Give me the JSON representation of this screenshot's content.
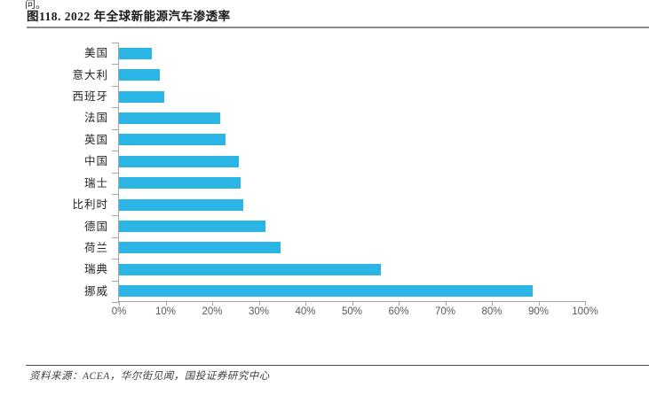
{
  "page": {
    "top_text": "问。"
  },
  "chart_data": {
    "type": "bar",
    "orientation": "horizontal",
    "title": "图118. 2022 年全球新能源汽车渗透率",
    "categories": [
      "美国",
      "意大利",
      "西班牙",
      "法国",
      "英国",
      "中国",
      "瑞士",
      "比利时",
      "德国",
      "荷兰",
      "瑞典",
      "挪威"
    ],
    "values": [
      7.0,
      8.8,
      9.7,
      21.8,
      22.9,
      25.8,
      26.0,
      26.7,
      31.5,
      34.7,
      56.1,
      88.7
    ],
    "unit": "%",
    "xlabel": "",
    "ylabel": "",
    "xlim": [
      0,
      100
    ],
    "x_tick_labels": [
      "0%",
      "10%",
      "20%",
      "30%",
      "40%",
      "50%",
      "60%",
      "70%",
      "80%",
      "90%",
      "100%"
    ],
    "grid": false,
    "legend": false,
    "bar_color": "#2BB5E4",
    "axis_color": "#A6A6A6",
    "tick_label_color": "#595959"
  },
  "footer": {
    "source": "资料来源：ACEA，华尔街见闻，国投证券研究中心"
  }
}
